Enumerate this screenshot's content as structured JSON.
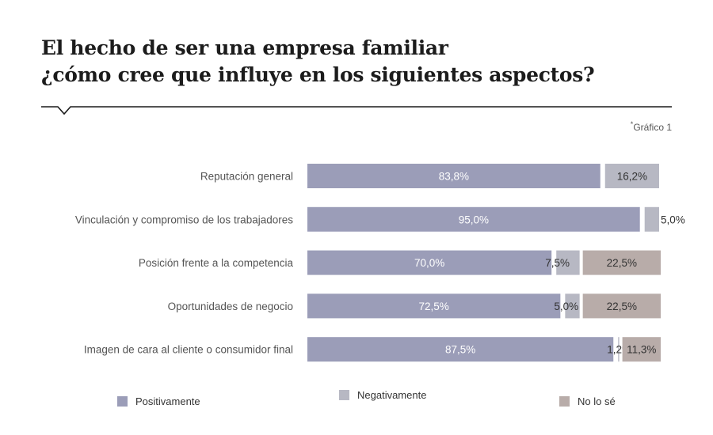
{
  "header": {
    "title_line1": "El hecho de ser una empresa familiar",
    "title_line2": "¿cómo cree que influye en los siguientes aspectos?",
    "figure_label": "Gráfico 1",
    "figure_mark": "*"
  },
  "colors": {
    "positive": "#9b9db8",
    "negative": "#b7b8c3",
    "unknown": "#b8aca9",
    "text": "#555555",
    "rule": "#1a1a1a"
  },
  "chart_data": {
    "type": "bar",
    "orientation": "horizontal",
    "stacked": true,
    "unit": "%",
    "xlim": [
      0,
      100
    ],
    "grid": false,
    "legend_position": "bottom",
    "categories": [
      "Reputación general",
      "Vinculación y compromiso de los trabajadores",
      "Posición frente a la competencia",
      "Oportunidades de negocio",
      "Imagen de cara al cliente o consumidor final"
    ],
    "series": [
      {
        "name": "Positivamente",
        "values": [
          83.8,
          95.0,
          70.0,
          72.5,
          87.5
        ],
        "labels": [
          "83,8%",
          "95,0%",
          "70,0%",
          "72,5%",
          "87,5%"
        ]
      },
      {
        "name": "Negativamente",
        "values": [
          16.2,
          5.0,
          7.5,
          5.0,
          1.2
        ],
        "labels": [
          "16,2%",
          "5,0%",
          "7,5%",
          "5,0%",
          "1,2%"
        ]
      },
      {
        "name": "No lo sé",
        "values": [
          0,
          0,
          22.5,
          22.5,
          11.3
        ],
        "labels": [
          "",
          "",
          "22,5%",
          "22,5%",
          "11,3%"
        ]
      }
    ]
  }
}
